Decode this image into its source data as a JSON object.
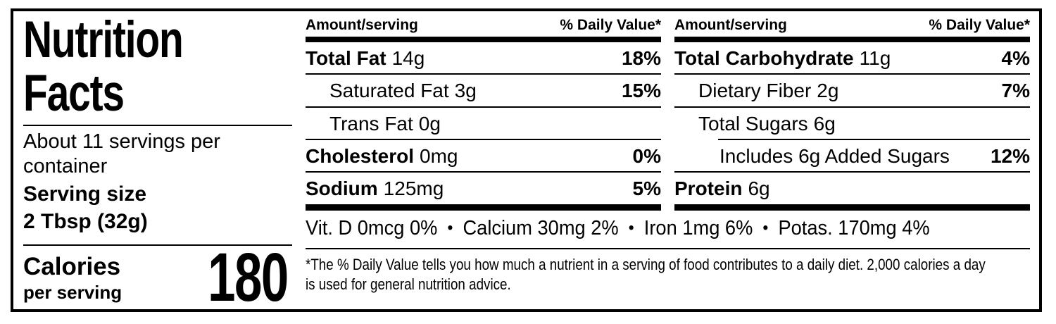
{
  "left_panel": {
    "title": "Nutrition Facts",
    "servings_per_container": "About 11 servings per container",
    "serving_size_label": "Serving size",
    "serving_size_value": "2 Tbsp (32g)",
    "calories_label": "Calories",
    "calories_sublabel": "per serving",
    "calories_value": "180"
  },
  "columns": [
    {
      "amount_header": "Amount/serving",
      "dv_header": "% Daily Value*",
      "rows": [
        {
          "label": "Total Fat",
          "value": "14g",
          "dv": "18%"
        },
        {
          "label": "Saturated Fat",
          "value": "3g",
          "dv": "15%"
        },
        {
          "label": "Trans Fat",
          "value": "0g",
          "dv": ""
        },
        {
          "label": "Cholesterol",
          "value": "0mg",
          "dv": "0%"
        },
        {
          "label": "Sodium",
          "value": "125mg",
          "dv": "5%"
        }
      ]
    },
    {
      "amount_header": "Amount/serving",
      "dv_header": "% Daily Value*",
      "rows": [
        {
          "label": "Total Carbohydrate",
          "value": "11g",
          "dv": "4%"
        },
        {
          "label": "Dietary Fiber",
          "value": "2g",
          "dv": "7%"
        },
        {
          "label": "Total Sugars",
          "value": "6g",
          "dv": ""
        },
        {
          "label": "Includes 6g Added Sugars",
          "value": "",
          "dv": "12%"
        },
        {
          "label": "Protein",
          "value": "6g",
          "dv": ""
        }
      ]
    }
  ],
  "micronutrients": {
    "separator": "•",
    "items": [
      "Vit. D 0mcg 0%",
      "Calcium 30mg 2%",
      "Iron 1mg 6%",
      "Potas. 170mg 4%"
    ]
  },
  "footnote": "*The % Daily Value tells you how much a nutrient in a serving of food contributes to a daily diet. 2,000 calories a day is used for general nutrition advice.",
  "colors": {
    "ink": "#000000",
    "background": "#ffffff"
  }
}
